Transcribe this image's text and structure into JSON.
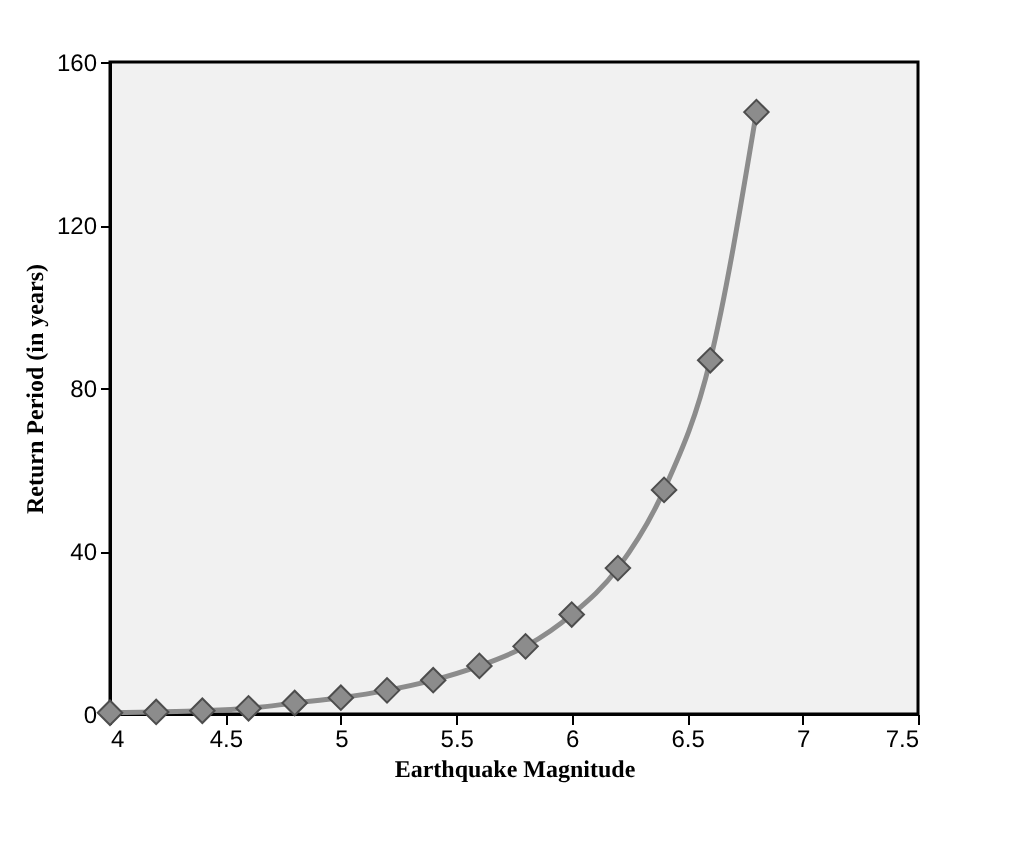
{
  "chart_data": {
    "type": "line",
    "xlabel": "Earthquake Magnitude",
    "ylabel": "Return Period (in years)",
    "x": [
      4,
      4.2,
      4.4,
      4.6,
      4.8,
      5,
      5.2,
      5.4,
      5.6,
      5.8,
      6,
      6.2,
      6.4,
      6.6,
      6.8
    ],
    "series": [
      {
        "color": "#8c8c8c",
        "values": [
          0.3,
          0.5,
          0.8,
          1.4,
          2.7,
          4,
          5.8,
          8.3,
          11.8,
          16.6,
          24.4,
          35.8,
          55,
          86.8,
          147.7
        ]
      }
    ],
    "xlim": [
      4,
      7.5
    ],
    "xticks": [
      4,
      4.5,
      5,
      5.5,
      6,
      6.5,
      7,
      7.5
    ],
    "ylim": [
      0,
      160
    ],
    "yticks": [
      0,
      40,
      80,
      120,
      160
    ],
    "marker": "diamond",
    "grid": false,
    "legend": false
  }
}
